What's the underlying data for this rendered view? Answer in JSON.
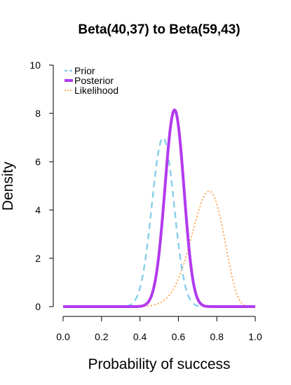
{
  "chart_data": {
    "type": "line",
    "title": "Beta(40,37) to Beta(59,43)",
    "xlabel": "Probability of success",
    "ylabel": "Density",
    "xlim": [
      0,
      1
    ],
    "ylim": [
      0,
      10
    ],
    "x_ticks": [
      "0.0",
      "0.2",
      "0.4",
      "0.6",
      "0.8",
      "1.0"
    ],
    "y_ticks": [
      "0",
      "2",
      "4",
      "6",
      "8",
      "10"
    ],
    "grid": false,
    "legend_position": "top-left",
    "series": [
      {
        "name": "Prior",
        "distribution": "beta",
        "alpha": 40,
        "beta": 37,
        "color": "#87CEEB",
        "line_style": "dashed"
      },
      {
        "name": "Posterior",
        "distribution": "beta",
        "alpha": 59,
        "beta": 43,
        "color": "#B23AEE",
        "line_style": "solid"
      },
      {
        "name": "Likelihood",
        "distribution": "beta",
        "alpha": 20,
        "beta": 7,
        "color": "#FF7F00",
        "line_style": "dotted"
      }
    ]
  }
}
